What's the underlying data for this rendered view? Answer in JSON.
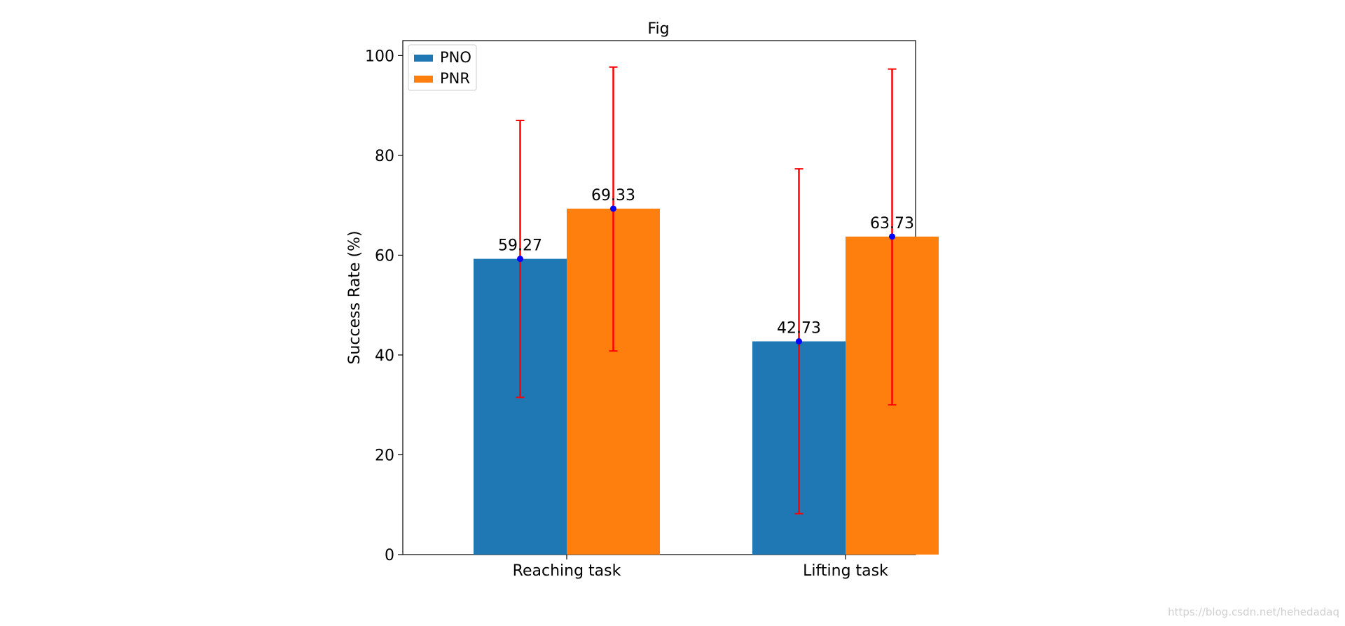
{
  "watermark": "https://blog.csdn.net/hehedadaq",
  "chart_data": {
    "type": "bar",
    "title": "Fig",
    "xlabel": "",
    "ylabel": "Success Rate (%)",
    "ylim": [
      0,
      103
    ],
    "yticks": [
      0,
      20,
      40,
      60,
      80,
      100
    ],
    "categories": [
      "Reaching task",
      "Lifting task"
    ],
    "legend_position": "top-left",
    "grid": false,
    "series": [
      {
        "name": "PNO",
        "color": "#1f77b4",
        "values": [
          59.27,
          42.73
        ],
        "labels": [
          "59.27",
          "42.73"
        ],
        "error_low": [
          31.5,
          8.2
        ],
        "error_high": [
          87.0,
          77.3
        ]
      },
      {
        "name": "PNR",
        "color": "#ff7f0e",
        "values": [
          69.33,
          63.73
        ],
        "labels": [
          "69.33",
          "63.73"
        ],
        "error_low": [
          40.8,
          30.0
        ],
        "error_high": [
          97.7,
          97.3
        ]
      }
    ],
    "errorbar_color": "#ff0000",
    "marker_color": "#0000ff"
  }
}
